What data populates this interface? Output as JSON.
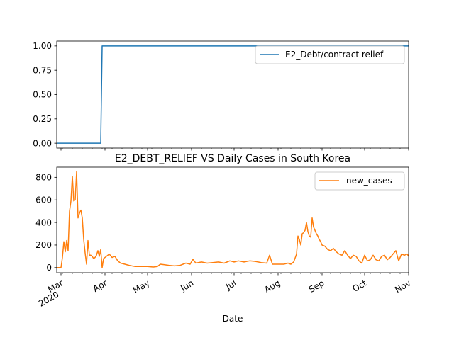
{
  "chart_data": [
    {
      "type": "line",
      "title": "",
      "xlabel": "",
      "ylabel": "",
      "ylim": [
        -0.05,
        1.05
      ],
      "yticks": [
        "0.00",
        "0.25",
        "0.50",
        "0.75",
        "1.00"
      ],
      "x_range": [
        "2020-02-27",
        "2020-11-01"
      ],
      "legend": "top-right",
      "grid": false,
      "series": [
        {
          "name": "E2_Debt/contract relief",
          "color": "#1f77b4",
          "points": [
            [
              "2020-02-27",
              0
            ],
            [
              "2020-03-29",
              0
            ],
            [
              "2020-03-30",
              1
            ],
            [
              "2020-11-01",
              1
            ]
          ]
        }
      ]
    },
    {
      "type": "line",
      "title": "E2_DEBT_RELIEF VS Daily Cases in South Korea",
      "xlabel": "Date",
      "ylabel": "",
      "ylim": [
        -45,
        890
      ],
      "yticks": [
        "0",
        "200",
        "400",
        "600",
        "800"
      ],
      "x_range": [
        "2020-02-27",
        "2020-11-01"
      ],
      "x_tick_labels": [
        {
          "date": "2020-03-01",
          "label": "Mar",
          "label2": "2020"
        },
        {
          "date": "2020-04-01",
          "label": "Apr"
        },
        {
          "date": "2020-05-01",
          "label": "May"
        },
        {
          "date": "2020-06-01",
          "label": "Jun"
        },
        {
          "date": "2020-07-01",
          "label": "Jul"
        },
        {
          "date": "2020-08-01",
          "label": "Aug"
        },
        {
          "date": "2020-09-01",
          "label": "Sep"
        },
        {
          "date": "2020-10-01",
          "label": "Oct"
        },
        {
          "date": "2020-11-01",
          "label": "Nov"
        }
      ],
      "legend": "top-right",
      "grid": false,
      "series": [
        {
          "name": "new_cases",
          "color": "#ff7f0e",
          "points": [
            [
              "2020-02-27",
              0
            ],
            [
              "2020-03-01",
              0
            ],
            [
              "2020-03-02",
              90
            ],
            [
              "2020-03-03",
              230
            ],
            [
              "2020-03-04",
              140
            ],
            [
              "2020-03-05",
              240
            ],
            [
              "2020-03-06",
              150
            ],
            [
              "2020-03-07",
              500
            ],
            [
              "2020-03-08",
              590
            ],
            [
              "2020-03-09",
              810
            ],
            [
              "2020-03-10",
              590
            ],
            [
              "2020-03-11",
              600
            ],
            [
              "2020-03-12",
              850
            ],
            [
              "2020-03-13",
              440
            ],
            [
              "2020-03-14",
              480
            ],
            [
              "2020-03-15",
              510
            ],
            [
              "2020-03-16",
              440
            ],
            [
              "2020-03-17",
              250
            ],
            [
              "2020-03-18",
              130
            ],
            [
              "2020-03-19",
              30
            ],
            [
              "2020-03-20",
              240
            ],
            [
              "2020-03-21",
              110
            ],
            [
              "2020-03-22",
              110
            ],
            [
              "2020-03-23",
              100
            ],
            [
              "2020-03-24",
              80
            ],
            [
              "2020-03-25",
              90
            ],
            [
              "2020-03-26",
              110
            ],
            [
              "2020-03-27",
              150
            ],
            [
              "2020-03-28",
              100
            ],
            [
              "2020-03-29",
              160
            ],
            [
              "2020-03-30",
              0
            ],
            [
              "2020-03-31",
              80
            ],
            [
              "2020-04-02",
              100
            ],
            [
              "2020-04-04",
              120
            ],
            [
              "2020-04-06",
              90
            ],
            [
              "2020-04-08",
              100
            ],
            [
              "2020-04-10",
              60
            ],
            [
              "2020-04-12",
              40
            ],
            [
              "2020-04-15",
              30
            ],
            [
              "2020-04-18",
              20
            ],
            [
              "2020-04-22",
              10
            ],
            [
              "2020-04-26",
              10
            ],
            [
              "2020-05-01",
              10
            ],
            [
              "2020-05-05",
              5
            ],
            [
              "2020-05-08",
              10
            ],
            [
              "2020-05-10",
              30
            ],
            [
              "2020-05-13",
              25
            ],
            [
              "2020-05-16",
              20
            ],
            [
              "2020-05-20",
              15
            ],
            [
              "2020-05-24",
              20
            ],
            [
              "2020-05-28",
              40
            ],
            [
              "2020-05-31",
              30
            ],
            [
              "2020-06-02",
              75
            ],
            [
              "2020-06-04",
              40
            ],
            [
              "2020-06-08",
              50
            ],
            [
              "2020-06-12",
              40
            ],
            [
              "2020-06-16",
              45
            ],
            [
              "2020-06-20",
              50
            ],
            [
              "2020-06-24",
              40
            ],
            [
              "2020-06-28",
              60
            ],
            [
              "2020-07-01",
              50
            ],
            [
              "2020-07-04",
              60
            ],
            [
              "2020-07-08",
              50
            ],
            [
              "2020-07-12",
              60
            ],
            [
              "2020-07-16",
              55
            ],
            [
              "2020-07-20",
              45
            ],
            [
              "2020-07-24",
              40
            ],
            [
              "2020-07-26",
              110
            ],
            [
              "2020-07-28",
              30
            ],
            [
              "2020-08-01",
              30
            ],
            [
              "2020-08-05",
              30
            ],
            [
              "2020-08-08",
              40
            ],
            [
              "2020-08-10",
              30
            ],
            [
              "2020-08-12",
              50
            ],
            [
              "2020-08-14",
              120
            ],
            [
              "2020-08-15",
              280
            ],
            [
              "2020-08-16",
              250
            ],
            [
              "2020-08-17",
              200
            ],
            [
              "2020-08-18",
              300
            ],
            [
              "2020-08-19",
              310
            ],
            [
              "2020-08-20",
              330
            ],
            [
              "2020-08-21",
              400
            ],
            [
              "2020-08-22",
              320
            ],
            [
              "2020-08-23",
              280
            ],
            [
              "2020-08-24",
              270
            ],
            [
              "2020-08-25",
              440
            ],
            [
              "2020-08-26",
              360
            ],
            [
              "2020-08-27",
              330
            ],
            [
              "2020-08-28",
              300
            ],
            [
              "2020-08-29",
              280
            ],
            [
              "2020-08-30",
              250
            ],
            [
              "2020-08-31",
              230
            ],
            [
              "2020-09-01",
              200
            ],
            [
              "2020-09-03",
              190
            ],
            [
              "2020-09-05",
              160
            ],
            [
              "2020-09-07",
              150
            ],
            [
              "2020-09-09",
              170
            ],
            [
              "2020-09-11",
              140
            ],
            [
              "2020-09-13",
              120
            ],
            [
              "2020-09-15",
              110
            ],
            [
              "2020-09-17",
              150
            ],
            [
              "2020-09-19",
              110
            ],
            [
              "2020-09-21",
              80
            ],
            [
              "2020-09-23",
              110
            ],
            [
              "2020-09-25",
              100
            ],
            [
              "2020-09-27",
              60
            ],
            [
              "2020-09-29",
              40
            ],
            [
              "2020-10-01",
              110
            ],
            [
              "2020-10-03",
              60
            ],
            [
              "2020-10-05",
              70
            ],
            [
              "2020-10-07",
              110
            ],
            [
              "2020-10-09",
              70
            ],
            [
              "2020-10-11",
              60
            ],
            [
              "2020-10-13",
              100
            ],
            [
              "2020-10-15",
              110
            ],
            [
              "2020-10-17",
              70
            ],
            [
              "2020-10-19",
              90
            ],
            [
              "2020-10-21",
              120
            ],
            [
              "2020-10-23",
              150
            ],
            [
              "2020-10-25",
              60
            ],
            [
              "2020-10-27",
              120
            ],
            [
              "2020-10-29",
              110
            ],
            [
              "2020-10-31",
              120
            ],
            [
              "2020-11-01",
              100
            ]
          ]
        }
      ]
    }
  ]
}
